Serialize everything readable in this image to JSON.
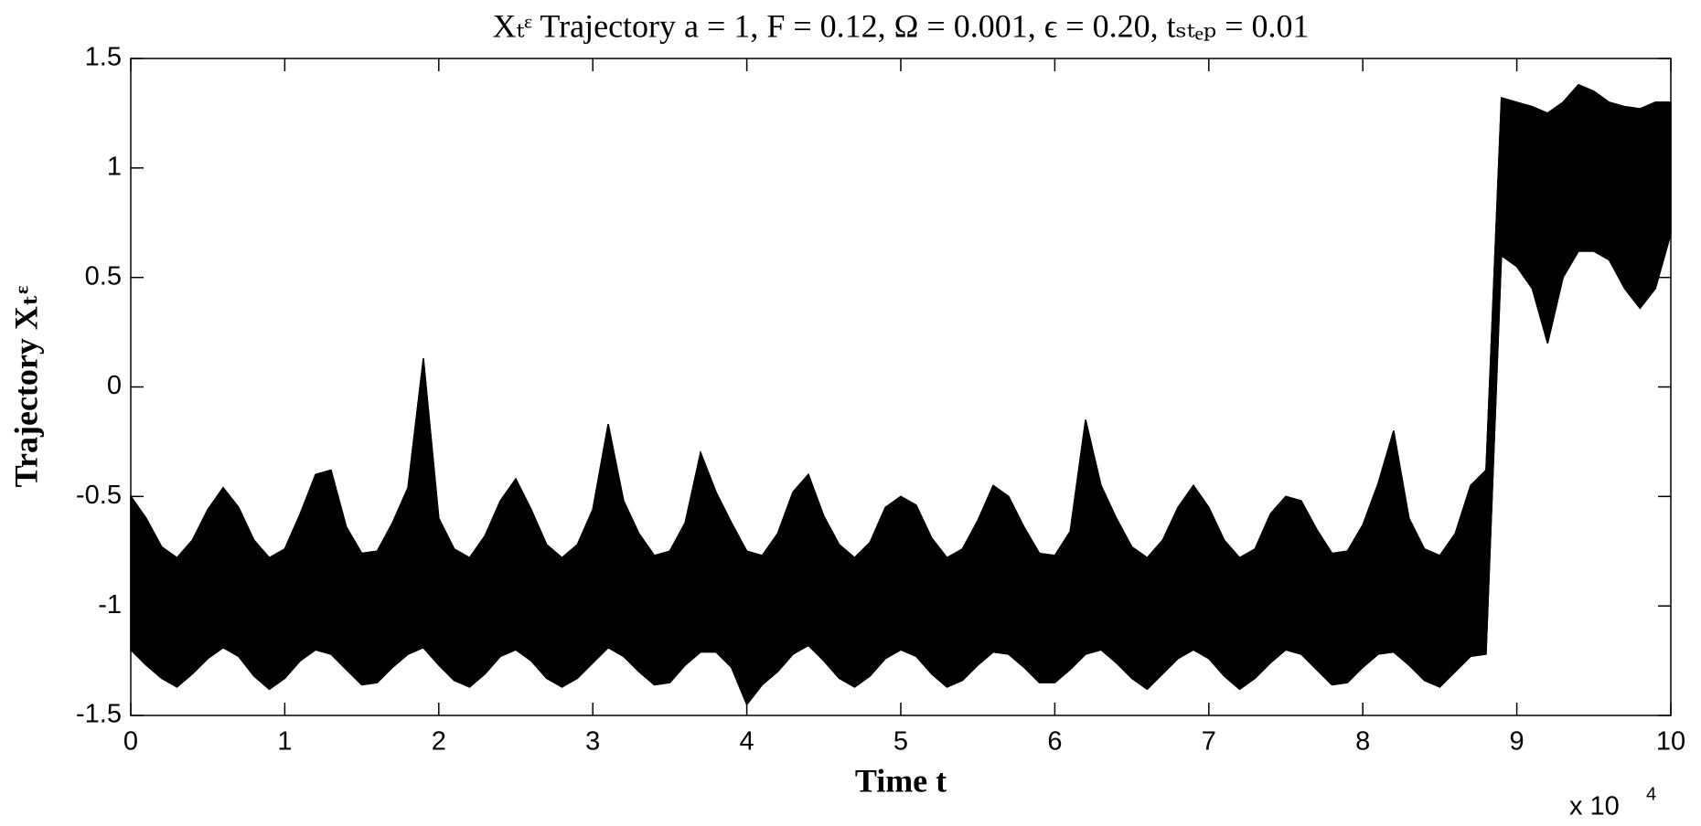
{
  "chart_data": {
    "type": "band",
    "title": "Xₜᵋ Trajectory a = 1, F = 0.12, Ω = 0.001, ϵ = 0.20, tₛₜₑₚ = 0.01",
    "x_label": "Time t",
    "y_label": "Trajectory Xₜᵋ",
    "x_scale_label": "x 10",
    "x_scale_exponent": "4",
    "xlim": [
      0,
      10
    ],
    "ylim": [
      -1.5,
      1.5
    ],
    "xticks": [
      0,
      1,
      2,
      3,
      4,
      5,
      6,
      7,
      8,
      9,
      10
    ],
    "yticks": [
      -1.5,
      -1,
      -0.5,
      0,
      0.5,
      1,
      1.5
    ],
    "grid": false,
    "x": [
      0,
      0.1,
      0.2,
      0.3,
      0.4,
      0.5,
      0.6,
      0.7,
      0.8,
      0.9,
      1,
      1.1,
      1.2,
      1.3,
      1.4,
      1.5,
      1.6,
      1.7,
      1.8,
      1.9,
      2,
      2.1,
      2.2,
      2.3,
      2.4,
      2.5,
      2.6,
      2.7,
      2.8,
      2.9,
      3,
      3.1,
      3.2,
      3.3,
      3.4,
      3.5,
      3.6,
      3.7,
      3.8,
      3.9,
      4,
      4.1,
      4.2,
      4.3,
      4.4,
      4.5,
      4.6,
      4.7,
      4.8,
      4.9,
      5,
      5.1,
      5.2,
      5.3,
      5.4,
      5.5,
      5.6,
      5.7,
      5.8,
      5.9,
      6,
      6.1,
      6.2,
      6.3,
      6.4,
      6.5,
      6.6,
      6.7,
      6.8,
      6.9,
      7,
      7.1,
      7.2,
      7.3,
      7.4,
      7.5,
      7.6,
      7.7,
      7.8,
      7.9,
      8,
      8.1,
      8.2,
      8.3,
      8.4,
      8.5,
      8.6,
      8.7,
      8.8,
      8.9,
      9,
      9.1,
      9.2,
      9.3,
      9.4,
      9.5,
      9.6,
      9.7,
      9.8,
      9.9,
      10
    ],
    "series": [
      {
        "color": "#000000",
        "values": [
          -0.5,
          -0.6,
          -0.73,
          -0.78,
          -0.7,
          -0.56,
          -0.46,
          -0.55,
          -0.7,
          -0.78,
          -0.74,
          -0.58,
          -0.4,
          -0.38,
          -0.64,
          -0.76,
          -0.75,
          -0.62,
          -0.46,
          0.13,
          -0.6,
          -0.74,
          -0.78,
          -0.68,
          -0.52,
          -0.42,
          -0.56,
          -0.72,
          -0.78,
          -0.72,
          -0.56,
          -0.17,
          -0.52,
          -0.67,
          -0.77,
          -0.75,
          -0.62,
          -0.3,
          -0.48,
          -0.62,
          -0.75,
          -0.77,
          -0.67,
          -0.48,
          -0.4,
          -0.59,
          -0.72,
          -0.78,
          -0.71,
          -0.55,
          -0.5,
          -0.54,
          -0.69,
          -0.78,
          -0.74,
          -0.61,
          -0.45,
          -0.5,
          -0.64,
          -0.76,
          -0.77,
          -0.66,
          -0.15,
          -0.45,
          -0.6,
          -0.73,
          -0.78,
          -0.7,
          -0.55,
          -0.45,
          -0.55,
          -0.7,
          -0.78,
          -0.74,
          -0.58,
          -0.5,
          -0.52,
          -0.65,
          -0.76,
          -0.75,
          -0.63,
          -0.44,
          -0.2,
          -0.6,
          -0.74,
          -0.77,
          -0.67,
          -0.45,
          -0.38,
          1.32,
          1.3,
          1.28,
          1.25,
          1.3,
          1.38,
          1.35,
          1.3,
          1.28,
          1.27,
          1.3,
          1.3
        ]
      },
      {
        "color": "#000000",
        "values": [
          -1.2,
          -1.27,
          -1.33,
          -1.37,
          -1.31,
          -1.24,
          -1.19,
          -1.23,
          -1.32,
          -1.38,
          -1.33,
          -1.25,
          -1.2,
          -1.22,
          -1.29,
          -1.36,
          -1.35,
          -1.28,
          -1.22,
          -1.19,
          -1.27,
          -1.34,
          -1.37,
          -1.31,
          -1.23,
          -1.2,
          -1.25,
          -1.33,
          -1.37,
          -1.33,
          -1.26,
          -1.19,
          -1.23,
          -1.3,
          -1.36,
          -1.35,
          -1.27,
          -1.21,
          -1.21,
          -1.28,
          -1.45,
          -1.36,
          -1.3,
          -1.22,
          -1.18,
          -1.25,
          -1.33,
          -1.37,
          -1.32,
          -1.24,
          -1.2,
          -1.23,
          -1.31,
          -1.37,
          -1.34,
          -1.27,
          -1.21,
          -1.22,
          -1.28,
          -1.35,
          -1.35,
          -1.29,
          -1.22,
          -1.2,
          -1.26,
          -1.33,
          -1.38,
          -1.31,
          -1.24,
          -1.2,
          -1.24,
          -1.32,
          -1.38,
          -1.33,
          -1.26,
          -1.2,
          -1.22,
          -1.29,
          -1.36,
          -1.35,
          -1.28,
          -1.22,
          -1.21,
          -1.27,
          -1.34,
          -1.37,
          -1.3,
          -1.23,
          -1.22,
          0.6,
          0.55,
          0.45,
          0.2,
          0.5,
          0.62,
          0.62,
          0.58,
          0.45,
          0.36,
          0.45,
          0.7
        ]
      }
    ]
  }
}
